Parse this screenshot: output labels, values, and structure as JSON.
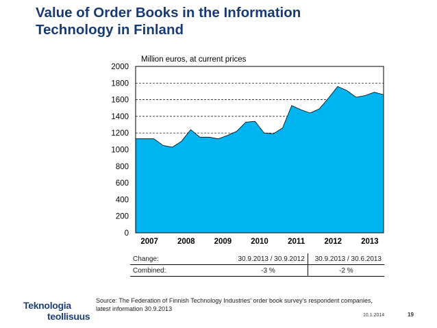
{
  "slide": {
    "title_line1": "Value of Order Books in the Information",
    "title_line2": "Technology in Finland",
    "source_line1": "Source: The Federation of Finnish Technology Industries’ order book survey’s respondent companies,",
    "source_line2": "latest information 30.9.2013",
    "date": "10.1.2014",
    "page": "19",
    "logo_line1": "Teknologia",
    "logo_line2": "teollisuus"
  },
  "colors": {
    "title": "#173a73",
    "area_fill": "#00b4f0",
    "logo": "#1e3f78"
  },
  "change_table": {
    "header_label": "Change:",
    "col1_header": "30.9.2013 / 30.9.2012",
    "col2_header": "30.9.2013 / 30.6.2013",
    "row_label": "Combined:",
    "col1_value": "-3 %",
    "col2_value": "-2 %"
  },
  "chart_data": {
    "type": "area",
    "unit_label": "Million euros, at current prices",
    "ylim": [
      0,
      2000
    ],
    "yticks": [
      0,
      200,
      400,
      600,
      800,
      1000,
      1200,
      1400,
      1600,
      1800,
      2000
    ],
    "grid": "horizontal dashed",
    "year_labels": [
      "2007",
      "2008",
      "2009",
      "2010",
      "2011",
      "2012",
      "2013"
    ],
    "x_quarterly_start": "2007 Q1",
    "values": [
      1130,
      1130,
      1130,
      1050,
      1030,
      1100,
      1240,
      1150,
      1150,
      1130,
      1170,
      1220,
      1330,
      1340,
      1200,
      1190,
      1260,
      1530,
      1480,
      1440,
      1490,
      1620,
      1760,
      1710,
      1630,
      1650,
      1690,
      1660
    ]
  }
}
